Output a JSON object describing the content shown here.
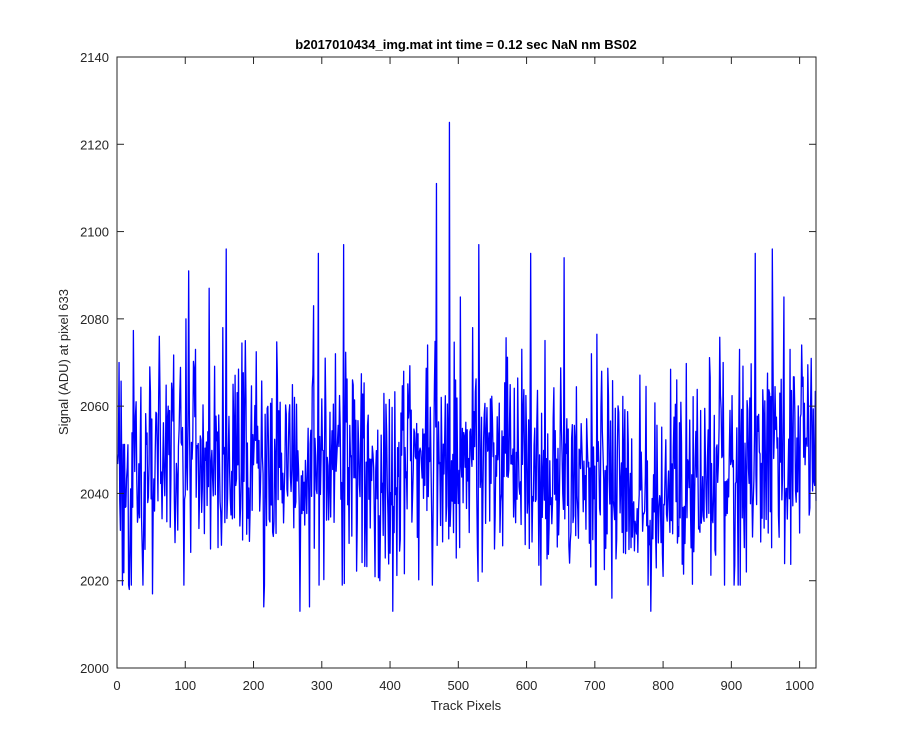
{
  "chart_data": {
    "type": "line",
    "title": "b2017010434_img.mat int time = 0.12 sec  NaN nm BS02",
    "xlabel": "Track Pixels",
    "ylabel": "Signal (ADU) at pixel 633",
    "xlim": [
      0,
      1024
    ],
    "ylim": [
      2000,
      2140
    ],
    "xticks": [
      0,
      100,
      200,
      300,
      400,
      500,
      600,
      700,
      800,
      900,
      1000
    ],
    "yticks": [
      2000,
      2020,
      2040,
      2060,
      2080,
      2100,
      2120,
      2140
    ],
    "grid": false,
    "line_color": "#0000ff",
    "series": [
      {
        "x_start": 1,
        "x_step": 1,
        "baseline_by_x": [
          [
            0,
            2046
          ],
          [
            200,
            2047
          ],
          [
            400,
            2047
          ],
          [
            500,
            2049
          ],
          [
            600,
            2047
          ],
          [
            700,
            2043
          ],
          [
            800,
            2041
          ],
          [
            900,
            2045
          ],
          [
            1024,
            2050
          ]
        ],
        "noise_sd": 12,
        "point_count": 1024,
        "peaks": [
          [
            3,
            2070
          ],
          [
            18,
            2018
          ],
          [
            28,
            2061
          ],
          [
            48,
            2069
          ],
          [
            52,
            2017
          ],
          [
            62,
            2076
          ],
          [
            75,
            2060
          ],
          [
            101,
            2080
          ],
          [
            105,
            2091
          ],
          [
            115,
            2073
          ],
          [
            135,
            2087
          ],
          [
            155,
            2078
          ],
          [
            160,
            2096
          ],
          [
            170,
            2065
          ],
          [
            188,
            2075
          ],
          [
            215,
            2014
          ],
          [
            235,
            2066
          ],
          [
            260,
            2062
          ],
          [
            268,
            2013
          ],
          [
            282,
            2014
          ],
          [
            288,
            2083
          ],
          [
            295,
            2095
          ],
          [
            305,
            2071
          ],
          [
            320,
            2072
          ],
          [
            332,
            2097
          ],
          [
            345,
            2066
          ],
          [
            385,
            2020
          ],
          [
            404,
            2013
          ],
          [
            420,
            2068
          ],
          [
            455,
            2074
          ],
          [
            468,
            2111
          ],
          [
            475,
            2062
          ],
          [
            487,
            2125
          ],
          [
            503,
            2085
          ],
          [
            530,
            2097
          ],
          [
            535,
            2022
          ],
          [
            550,
            2057
          ],
          [
            565,
            2028
          ],
          [
            606,
            2095
          ],
          [
            630,
            2025
          ],
          [
            655,
            2094
          ],
          [
            680,
            2056
          ],
          [
            695,
            2072
          ],
          [
            710,
            2068
          ],
          [
            725,
            2016
          ],
          [
            755,
            2030
          ],
          [
            782,
            2013
          ],
          [
            800,
            2021
          ],
          [
            820,
            2066
          ],
          [
            855,
            2059
          ],
          [
            888,
            2070
          ],
          [
            912,
            2073
          ],
          [
            922,
            2022
          ],
          [
            935,
            2095
          ],
          [
            960,
            2096
          ],
          [
            977,
            2085
          ],
          [
            986,
            2073
          ],
          [
            995,
            2038
          ],
          [
            1003,
            2074
          ],
          [
            1013,
            2058
          ]
        ]
      }
    ]
  }
}
